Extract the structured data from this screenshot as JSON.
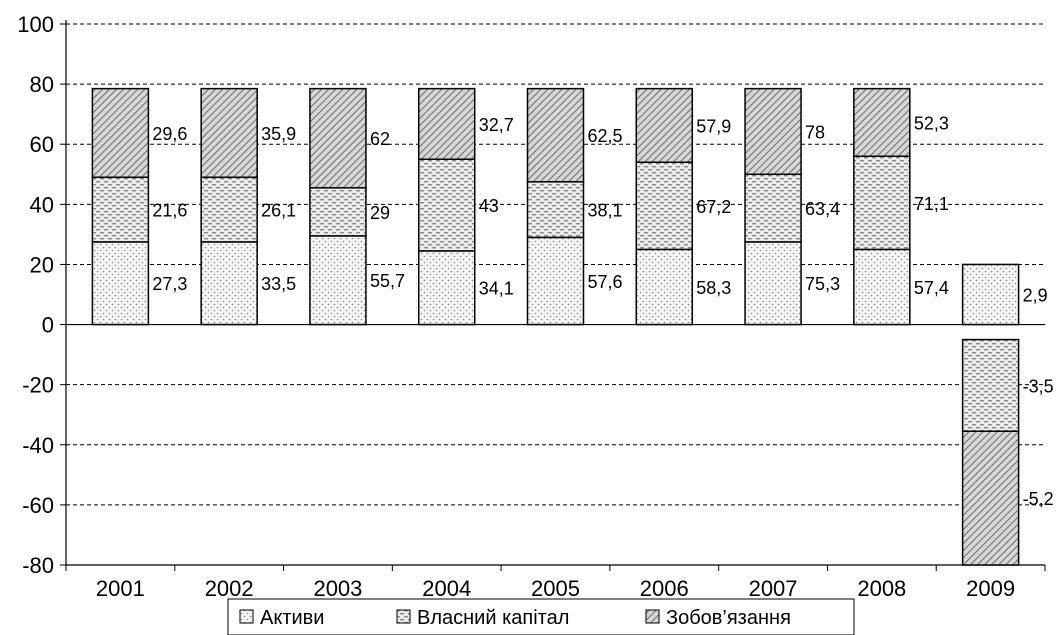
{
  "chart_data": {
    "type": "bar",
    "stacked": true,
    "categories": [
      "2001",
      "2002",
      "2003",
      "2004",
      "2005",
      "2006",
      "2007",
      "2008",
      "2009"
    ],
    "ylim": [
      -80,
      100
    ],
    "yticks": [
      -80,
      -60,
      -40,
      -20,
      0,
      20,
      40,
      60,
      80,
      100
    ],
    "grid": true,
    "legend_position": "bottom",
    "series": [
      {
        "name": "Активи",
        "pattern": "dots",
        "heights": [
          27.5,
          27.5,
          29.5,
          24.5,
          29,
          25,
          27.5,
          25,
          20
        ],
        "labels": [
          "27,3",
          "33,5",
          "55,7",
          "34,1",
          "57,6",
          "58,3",
          "75,3",
          "57,4",
          "2,9"
        ]
      },
      {
        "name": "Власний капітал",
        "pattern": "dashes",
        "heights": [
          21.5,
          21.5,
          16,
          30.5,
          18.5,
          29,
          22.5,
          31,
          -30.5
        ],
        "labels": [
          "21,6",
          "26,1",
          "29",
          "43",
          "38,1",
          "67,2",
          "63,4",
          "71,1",
          "-3,5"
        ]
      },
      {
        "name": "Зобов'язання",
        "pattern": "diagonal",
        "heights": [
          29.5,
          29.5,
          33,
          23.5,
          31,
          24.5,
          28.5,
          22.5,
          -44.5
        ],
        "labels": [
          "29,6",
          "35,9",
          "62",
          "32,7",
          "62,5",
          "57,9",
          "78",
          "52,3",
          "-5,2"
        ]
      }
    ],
    "neg_base": -5
  },
  "legend": {
    "items": [
      "Активи",
      "Власний капітал",
      "Зобов’язання"
    ]
  }
}
